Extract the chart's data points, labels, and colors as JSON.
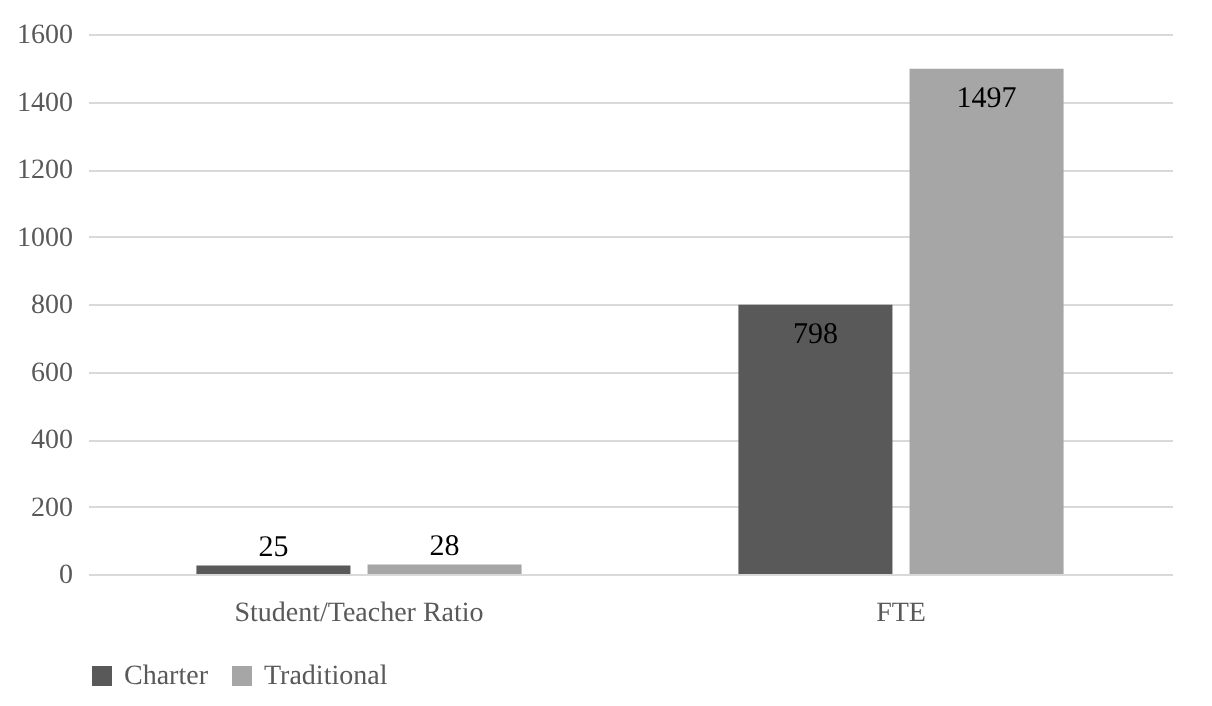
{
  "chart_data": {
    "type": "bar",
    "categories": [
      "Student/Teacher Ratio",
      "FTE"
    ],
    "series": [
      {
        "name": "Charter",
        "color": "#595959",
        "values": [
          25,
          798
        ]
      },
      {
        "name": "Traditional",
        "color": "#a6a6a6",
        "values": [
          28,
          1497
        ]
      }
    ],
    "ylim": [
      0,
      1600
    ],
    "yticks": [
      0,
      200,
      400,
      600,
      800,
      1000,
      1200,
      1400,
      1600
    ],
    "grid": "y",
    "legend": "bottom",
    "data_labels": true
  }
}
